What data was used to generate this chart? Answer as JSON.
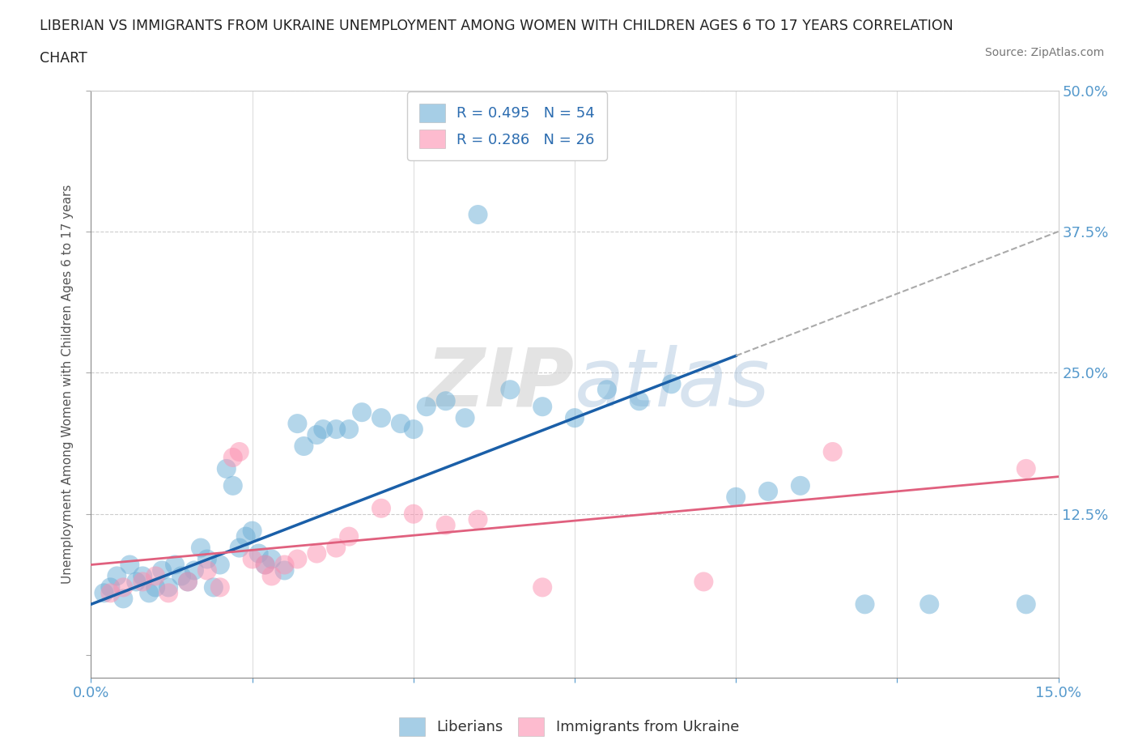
{
  "title_line1": "LIBERIAN VS IMMIGRANTS FROM UKRAINE UNEMPLOYMENT AMONG WOMEN WITH CHILDREN AGES 6 TO 17 YEARS CORRELATION",
  "title_line2": "CHART",
  "source": "Source: ZipAtlas.com",
  "xmin": 0.0,
  "xmax": 15.0,
  "ymin": -2.0,
  "ymax": 50.0,
  "liberian_color": "#6baed6",
  "ukraine_color": "#fc8faf",
  "liberian_line_color": "#1a5fa8",
  "ukraine_line_color": "#e0607e",
  "liberian_R": 0.495,
  "liberian_N": 54,
  "ukraine_R": 0.286,
  "ukraine_N": 26,
  "liberian_points": [
    [
      0.2,
      5.5
    ],
    [
      0.3,
      6.0
    ],
    [
      0.4,
      7.0
    ],
    [
      0.5,
      5.0
    ],
    [
      0.6,
      8.0
    ],
    [
      0.7,
      6.5
    ],
    [
      0.8,
      7.0
    ],
    [
      0.9,
      5.5
    ],
    [
      1.0,
      6.0
    ],
    [
      1.1,
      7.5
    ],
    [
      1.2,
      6.0
    ],
    [
      1.3,
      8.0
    ],
    [
      1.4,
      7.0
    ],
    [
      1.5,
      6.5
    ],
    [
      1.6,
      7.5
    ],
    [
      1.7,
      9.5
    ],
    [
      1.8,
      8.5
    ],
    [
      1.9,
      6.0
    ],
    [
      2.0,
      8.0
    ],
    [
      2.1,
      16.5
    ],
    [
      2.2,
      15.0
    ],
    [
      2.3,
      9.5
    ],
    [
      2.4,
      10.5
    ],
    [
      2.5,
      11.0
    ],
    [
      2.6,
      9.0
    ],
    [
      2.7,
      8.0
    ],
    [
      2.8,
      8.5
    ],
    [
      3.0,
      7.5
    ],
    [
      3.2,
      20.5
    ],
    [
      3.3,
      18.5
    ],
    [
      3.5,
      19.5
    ],
    [
      3.6,
      20.0
    ],
    [
      3.8,
      20.0
    ],
    [
      4.0,
      20.0
    ],
    [
      4.2,
      21.5
    ],
    [
      4.5,
      21.0
    ],
    [
      4.8,
      20.5
    ],
    [
      5.0,
      20.0
    ],
    [
      5.2,
      22.0
    ],
    [
      5.5,
      22.5
    ],
    [
      5.8,
      21.0
    ],
    [
      6.0,
      39.0
    ],
    [
      6.5,
      23.5
    ],
    [
      7.0,
      22.0
    ],
    [
      7.5,
      21.0
    ],
    [
      8.0,
      23.5
    ],
    [
      8.5,
      22.5
    ],
    [
      9.0,
      24.0
    ],
    [
      10.0,
      14.0
    ],
    [
      10.5,
      14.5
    ],
    [
      11.0,
      15.0
    ],
    [
      12.0,
      4.5
    ],
    [
      13.0,
      4.5
    ],
    [
      14.5,
      4.5
    ]
  ],
  "ukraine_points": [
    [
      0.3,
      5.5
    ],
    [
      0.5,
      6.0
    ],
    [
      0.8,
      6.5
    ],
    [
      1.0,
      7.0
    ],
    [
      1.2,
      5.5
    ],
    [
      1.5,
      6.5
    ],
    [
      1.8,
      7.5
    ],
    [
      2.0,
      6.0
    ],
    [
      2.2,
      17.5
    ],
    [
      2.3,
      18.0
    ],
    [
      2.5,
      8.5
    ],
    [
      2.7,
      8.0
    ],
    [
      2.8,
      7.0
    ],
    [
      3.0,
      8.0
    ],
    [
      3.2,
      8.5
    ],
    [
      3.5,
      9.0
    ],
    [
      3.8,
      9.5
    ],
    [
      4.0,
      10.5
    ],
    [
      4.5,
      13.0
    ],
    [
      5.0,
      12.5
    ],
    [
      5.5,
      11.5
    ],
    [
      6.0,
      12.0
    ],
    [
      7.0,
      6.0
    ],
    [
      9.5,
      6.5
    ],
    [
      11.5,
      18.0
    ],
    [
      14.5,
      16.5
    ]
  ],
  "background_color": "#ffffff",
  "grid_color": "#cccccc",
  "watermark_color": "#d8d8d8"
}
